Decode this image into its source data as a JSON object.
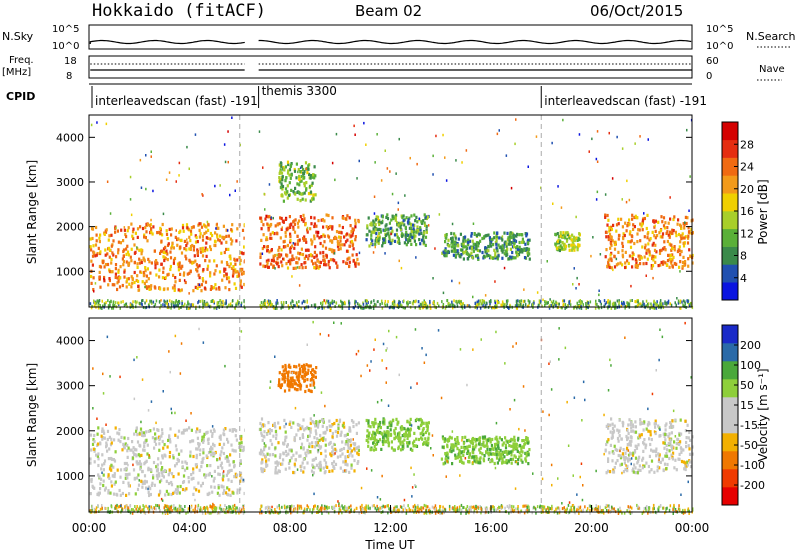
{
  "header": {
    "title": "Hokkaido (fitACF)",
    "beam": "Beam 02",
    "date": "06/Oct/2015"
  },
  "side_labels": {
    "nsky": "N.Sky",
    "nsearch": "N.Search",
    "freq": "Freq.",
    "mhz": "[MHz]",
    "nave": "Nave",
    "cpid": "CPID"
  },
  "mini_axes": {
    "nsky_ticks": [
      "10^5",
      "10^0"
    ],
    "nsearch_ticks": [
      "10^5",
      "10^0"
    ],
    "freq_ticks": [
      "18",
      "8"
    ],
    "nave_ticks": [
      "60",
      "0"
    ]
  },
  "cpid": {
    "segments": [
      {
        "label": "interleavedscan (fast) -191",
        "start_h": 0.0,
        "end_h": 6.0
      },
      {
        "label": "themis 3300",
        "start_h": 6.75,
        "end_h": 18.0
      },
      {
        "label": "interleavedscan (fast) -191",
        "start_h": 18.0,
        "end_h": 24.0
      }
    ]
  },
  "chart_data": [
    {
      "type": "heatmap",
      "quantity": "Power",
      "ylabel": "Slant Range [km]",
      "xlabel": "Time UT",
      "xlim_hours": [
        0,
        24
      ],
      "ylim_km": [
        200,
        4500
      ],
      "x_ticks": [
        "00:00",
        "04:00",
        "08:00",
        "12:00",
        "16:00",
        "20:00",
        "00:00"
      ],
      "y_ticks": [
        1000,
        2000,
        3000,
        4000
      ],
      "colorbar_label": "Power [dB]",
      "colorbar_ticks": [
        "28",
        "24",
        "20",
        "16",
        "12",
        "8",
        "4"
      ],
      "colorbar_colors": [
        "#0a14e0",
        "#2050b0",
        "#3a8a4a",
        "#5ab038",
        "#a8cf2a",
        "#f0d000",
        "#f39a1a",
        "#f06a12",
        "#e52d10",
        "#d40000"
      ],
      "data_gap_hours": [
        6.2,
        6.75
      ],
      "regions": [
        {
          "t_start": 0.0,
          "t_end": 6.2,
          "r_min": 600,
          "r_max": 2100,
          "level": 22
        },
        {
          "t_start": 6.75,
          "t_end": 10.7,
          "r_min": 1100,
          "r_max": 2300,
          "level": 24
        },
        {
          "t_start": 7.5,
          "t_end": 9.0,
          "r_min": 2600,
          "r_max": 3500,
          "level": 12
        },
        {
          "t_start": 11.0,
          "t_end": 13.5,
          "r_min": 1600,
          "r_max": 2300,
          "level": 10
        },
        {
          "t_start": 14.0,
          "t_end": 17.5,
          "r_min": 1300,
          "r_max": 1900,
          "level": 9
        },
        {
          "t_start": 18.5,
          "t_end": 19.5,
          "r_min": 1500,
          "r_max": 1900,
          "level": 14
        },
        {
          "t_start": 20.5,
          "t_end": 24.0,
          "r_min": 1100,
          "r_max": 2300,
          "level": 22
        }
      ]
    },
    {
      "type": "heatmap",
      "quantity": "Velocity",
      "ylabel": "Slant Range [km]",
      "xlabel": "Time UT",
      "xlim_hours": [
        0,
        24
      ],
      "ylim_km": [
        200,
        4500
      ],
      "x_ticks": [
        "00:00",
        "04:00",
        "08:00",
        "12:00",
        "16:00",
        "20:00",
        "00:00"
      ],
      "y_ticks": [
        1000,
        2000,
        3000,
        4000
      ],
      "colorbar_label": "Velocity [m s⁻¹]",
      "colorbar_ticks": [
        "200",
        "100",
        "50",
        "15",
        "-15",
        "-50",
        "-100",
        "-200"
      ],
      "colorbar_colors": [
        "#e60000",
        "#f03a00",
        "#f07800",
        "#f3b000",
        "#c8c8c8",
        "#c8c8c8",
        "#8ecf3a",
        "#4aa83a",
        "#2a6aa8",
        "#1a2ac8"
      ],
      "data_gap_hours": [
        6.2,
        6.75
      ],
      "regions": [
        {
          "t_start": 0.0,
          "t_end": 6.2,
          "r_min": 600,
          "r_max": 2100,
          "level": 0
        },
        {
          "t_start": 6.75,
          "t_end": 10.7,
          "r_min": 1100,
          "r_max": 2300,
          "level": 0
        },
        {
          "t_start": 7.5,
          "t_end": 9.0,
          "r_min": 2900,
          "r_max": 3500,
          "level": -80
        },
        {
          "t_start": 11.0,
          "t_end": 13.5,
          "r_min": 1600,
          "r_max": 2300,
          "level": 40
        },
        {
          "t_start": 14.0,
          "t_end": 17.5,
          "r_min": 1300,
          "r_max": 1900,
          "level": 40
        },
        {
          "t_start": 20.5,
          "t_end": 24.0,
          "r_min": 1100,
          "r_max": 2300,
          "level": 0
        }
      ]
    }
  ]
}
